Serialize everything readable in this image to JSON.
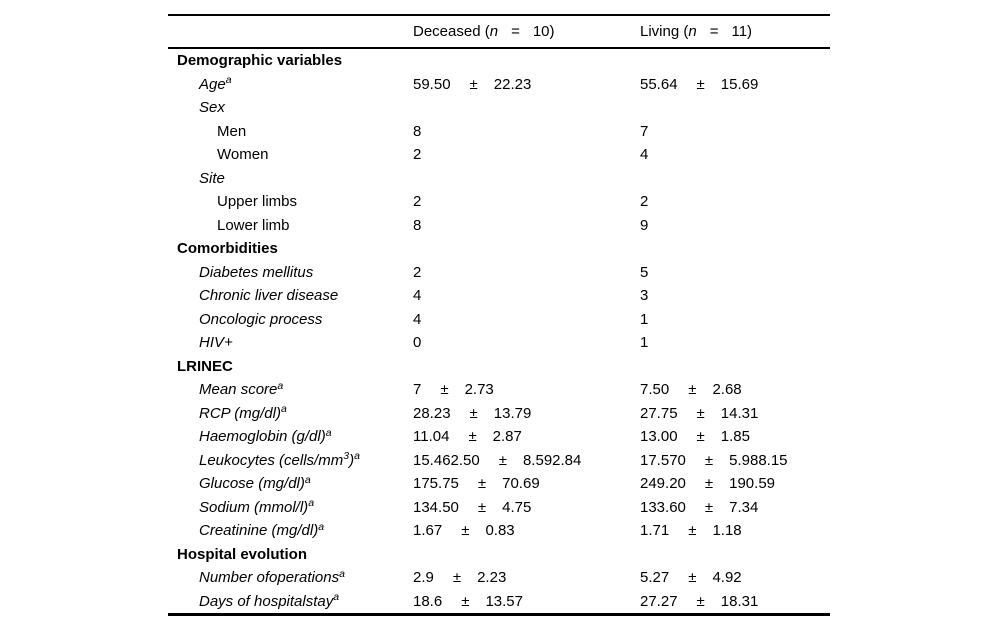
{
  "page": {
    "background_color": "#ffffff",
    "text_color": "#000000"
  },
  "table": {
    "pm_symbol": "±",
    "header": {
      "columns": [
        {
          "pre": "Deceased (",
          "nvar": "n",
          "eq": "=",
          "post": "10)"
        },
        {
          "pre": "Living (",
          "nvar": "n",
          "eq": "=",
          "post": "11)"
        }
      ]
    },
    "rows": [
      {
        "kind": "group",
        "parts": [
          {
            "t": "Demographic variables"
          }
        ]
      },
      {
        "kind": "var",
        "parts": [
          {
            "t": "Age"
          },
          {
            "t": "a",
            "sup": true
          }
        ],
        "deceased": {
          "m": "59.50",
          "s": "22.23"
        },
        "living": {
          "m": "55.64",
          "s": "15.69"
        }
      },
      {
        "kind": "var",
        "parts": [
          {
            "t": "Sex"
          }
        ]
      },
      {
        "kind": "sub",
        "parts": [
          {
            "t": "Men"
          }
        ],
        "deceased": {
          "m": "8"
        },
        "living": {
          "m": "7"
        }
      },
      {
        "kind": "sub",
        "parts": [
          {
            "t": "Women"
          }
        ],
        "deceased": {
          "m": "2"
        },
        "living": {
          "m": "4"
        }
      },
      {
        "kind": "var",
        "parts": [
          {
            "t": "Site"
          }
        ]
      },
      {
        "kind": "sub",
        "parts": [
          {
            "t": "Upper limbs"
          }
        ],
        "deceased": {
          "m": "2"
        },
        "living": {
          "m": "2"
        }
      },
      {
        "kind": "sub",
        "parts": [
          {
            "t": "Lower limb"
          }
        ],
        "deceased": {
          "m": "8"
        },
        "living": {
          "m": "9"
        }
      },
      {
        "kind": "group",
        "parts": [
          {
            "t": "Comorbidities"
          }
        ]
      },
      {
        "kind": "var",
        "parts": [
          {
            "t": "Diabetes mellitus"
          }
        ],
        "deceased": {
          "m": "2"
        },
        "living": {
          "m": "5"
        }
      },
      {
        "kind": "var",
        "parts": [
          {
            "t": "Chronic liver disease"
          }
        ],
        "deceased": {
          "m": "4"
        },
        "living": {
          "m": "3"
        }
      },
      {
        "kind": "var",
        "parts": [
          {
            "t": "Oncologic process"
          }
        ],
        "deceased": {
          "m": "4"
        },
        "living": {
          "m": "1"
        }
      },
      {
        "kind": "var",
        "parts": [
          {
            "t": "HIV+"
          }
        ],
        "deceased": {
          "m": "0"
        },
        "living": {
          "m": "1"
        }
      },
      {
        "kind": "group",
        "parts": [
          {
            "t": "LRINEC"
          }
        ]
      },
      {
        "kind": "var",
        "parts": [
          {
            "t": "Mean score"
          },
          {
            "t": "a",
            "sup": true
          }
        ],
        "deceased": {
          "m": "7",
          "s": "2.73"
        },
        "living": {
          "m": "7.50",
          "s": "2.68"
        }
      },
      {
        "kind": "var",
        "parts": [
          {
            "t": "RCP (mg/dl)"
          },
          {
            "t": "a",
            "sup": true
          }
        ],
        "deceased": {
          "m": "28.23",
          "s": "13.79"
        },
        "living": {
          "m": "27.75",
          "s": "14.31"
        }
      },
      {
        "kind": "var",
        "parts": [
          {
            "t": "Haemoglobin (g/dl)"
          },
          {
            "t": "a",
            "sup": true
          }
        ],
        "deceased": {
          "m": "11.04",
          "s": "2.87"
        },
        "living": {
          "m": "13.00",
          "s": "1.85"
        }
      },
      {
        "kind": "var",
        "parts": [
          {
            "t": "Leukocytes (cells/mm"
          },
          {
            "t": "3",
            "sup": true
          },
          {
            "t": ")"
          },
          {
            "t": "a",
            "sup": true
          }
        ],
        "deceased": {
          "m": "15.462.50",
          "s": "8.592.84"
        },
        "living": {
          "m": "17.570",
          "s": "5.988.15"
        }
      },
      {
        "kind": "var",
        "parts": [
          {
            "t": "Glucose (mg/dl)"
          },
          {
            "t": "a",
            "sup": true
          }
        ],
        "deceased": {
          "m": "175.75",
          "s": "70.69"
        },
        "living": {
          "m": "249.20",
          "s": "190.59"
        }
      },
      {
        "kind": "var",
        "parts": [
          {
            "t": "Sodium (mmol/l)"
          },
          {
            "t": "a",
            "sup": true
          }
        ],
        "deceased": {
          "m": "134.50",
          "s": "4.75"
        },
        "living": {
          "m": "133.60",
          "s": "7.34"
        }
      },
      {
        "kind": "var",
        "parts": [
          {
            "t": "Creatinine (mg/dl)"
          },
          {
            "t": "a",
            "sup": true
          }
        ],
        "deceased": {
          "m": "1.67",
          "s": "0.83"
        },
        "living": {
          "m": "1.71",
          "s": "1.18"
        }
      },
      {
        "kind": "group",
        "parts": [
          {
            "t": "Hospital evolution"
          }
        ]
      },
      {
        "kind": "var",
        "parts": [
          {
            "t": "Number ofoperations"
          },
          {
            "t": "a",
            "sup": true
          }
        ],
        "deceased": {
          "m": "2.9",
          "s": "2.23"
        },
        "living": {
          "m": "5.27",
          "s": "4.92"
        }
      },
      {
        "kind": "var",
        "parts": [
          {
            "t": "Days of hospitalstay"
          },
          {
            "t": "a",
            "sup": true
          }
        ],
        "deceased": {
          "m": "18.6",
          "s": "13.57"
        },
        "living": {
          "m": "27.27",
          "s": "18.31"
        }
      }
    ]
  }
}
